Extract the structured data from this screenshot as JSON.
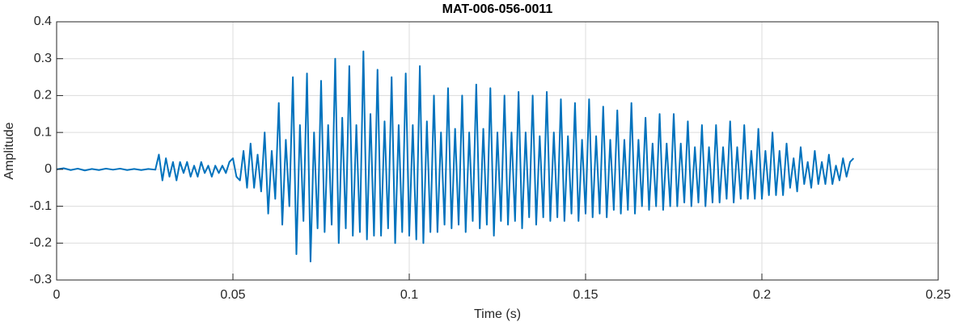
{
  "chart_data": {
    "type": "line",
    "title": "MAT-006-056-0011",
    "xlabel": "Time (s)",
    "ylabel": "Amplitude",
    "color": "#0072bd",
    "grid": true,
    "xlim": [
      0,
      0.25
    ],
    "xticks": [
      0,
      0.05,
      0.1,
      0.15,
      0.2,
      0.25
    ],
    "ylim": [
      -0.3,
      0.4
    ],
    "yticks": [
      -0.3,
      -0.2,
      -0.1,
      0,
      0.1,
      0.2,
      0.3,
      0.4
    ],
    "x": [
      0,
      0.002,
      0.004,
      0.006,
      0.008,
      0.01,
      0.012,
      0.014,
      0.016,
      0.018,
      0.02,
      0.022,
      0.024,
      0.026,
      0.028,
      0.029,
      0.03,
      0.031,
      0.032,
      0.033,
      0.034,
      0.035,
      0.036,
      0.037,
      0.038,
      0.039,
      0.04,
      0.041,
      0.042,
      0.043,
      0.044,
      0.045,
      0.046,
      0.047,
      0.048,
      0.049,
      0.05,
      0.051,
      0.052,
      0.053,
      0.054,
      0.055,
      0.056,
      0.057,
      0.058,
      0.059,
      0.06,
      0.061,
      0.062,
      0.063,
      0.064,
      0.065,
      0.066,
      0.067,
      0.068,
      0.069,
      0.07,
      0.071,
      0.072,
      0.073,
      0.074,
      0.075,
      0.076,
      0.077,
      0.078,
      0.079,
      0.08,
      0.081,
      0.082,
      0.083,
      0.084,
      0.085,
      0.086,
      0.087,
      0.088,
      0.089,
      0.09,
      0.091,
      0.092,
      0.093,
      0.094,
      0.095,
      0.096,
      0.097,
      0.098,
      0.099,
      0.1,
      0.101,
      0.102,
      0.103,
      0.104,
      0.105,
      0.106,
      0.107,
      0.108,
      0.109,
      0.11,
      0.111,
      0.112,
      0.113,
      0.114,
      0.115,
      0.116,
      0.117,
      0.118,
      0.119,
      0.12,
      0.121,
      0.122,
      0.123,
      0.124,
      0.125,
      0.126,
      0.127,
      0.128,
      0.129,
      0.13,
      0.131,
      0.132,
      0.133,
      0.134,
      0.135,
      0.136,
      0.137,
      0.138,
      0.139,
      0.14,
      0.141,
      0.142,
      0.143,
      0.144,
      0.145,
      0.146,
      0.147,
      0.148,
      0.149,
      0.15,
      0.151,
      0.152,
      0.153,
      0.154,
      0.155,
      0.156,
      0.157,
      0.158,
      0.159,
      0.16,
      0.161,
      0.162,
      0.163,
      0.164,
      0.165,
      0.166,
      0.167,
      0.168,
      0.169,
      0.17,
      0.171,
      0.172,
      0.173,
      0.174,
      0.175,
      0.176,
      0.177,
      0.178,
      0.179,
      0.18,
      0.181,
      0.182,
      0.183,
      0.184,
      0.185,
      0.186,
      0.187,
      0.188,
      0.189,
      0.19,
      0.191,
      0.192,
      0.193,
      0.194,
      0.195,
      0.196,
      0.197,
      0.198,
      0.199,
      0.2,
      0.201,
      0.202,
      0.203,
      0.204,
      0.205,
      0.206,
      0.207,
      0.208,
      0.209,
      0.21,
      0.211,
      0.212,
      0.213,
      0.214,
      0.215,
      0.216,
      0.217,
      0.218,
      0.219,
      0.22,
      0.221,
      0.222,
      0.223,
      0.224,
      0.225,
      0.226
    ],
    "values": [
      0,
      0.003,
      -0.002,
      0.002,
      -0.003,
      0.001,
      -0.002,
      0.002,
      -0.001,
      0.002,
      -0.002,
      0.001,
      -0.002,
      0.001,
      -0.001,
      0.04,
      -0.03,
      0.03,
      -0.02,
      0.02,
      -0.03,
      0.02,
      -0.01,
      0.02,
      -0.02,
      0.01,
      -0.02,
      0.02,
      -0.01,
      0.01,
      -0.02,
      0.01,
      -0.01,
      0.01,
      -0.01,
      0.02,
      0.03,
      -0.02,
      -0.03,
      0.05,
      -0.05,
      0.07,
      -0.05,
      0.04,
      -0.06,
      0.1,
      -0.12,
      0.05,
      -0.08,
      0.18,
      -0.15,
      0.08,
      -0.1,
      0.25,
      -0.23,
      0.12,
      -0.14,
      0.26,
      -0.25,
      0.1,
      -0.16,
      0.24,
      -0.17,
      0.12,
      -0.15,
      0.3,
      -0.2,
      0.14,
      -0.16,
      0.28,
      -0.18,
      0.12,
      -0.17,
      0.32,
      -0.19,
      0.15,
      -0.18,
      0.27,
      -0.18,
      0.13,
      -0.16,
      0.25,
      -0.2,
      0.12,
      -0.17,
      0.26,
      -0.18,
      0.12,
      -0.19,
      0.28,
      -0.2,
      0.13,
      -0.17,
      0.2,
      -0.17,
      0.1,
      -0.15,
      0.22,
      -0.16,
      0.11,
      -0.15,
      0.2,
      -0.17,
      0.1,
      -0.14,
      0.23,
      -0.16,
      0.11,
      -0.15,
      0.22,
      -0.18,
      0.1,
      -0.14,
      0.2,
      -0.15,
      0.1,
      -0.14,
      0.21,
      -0.16,
      0.1,
      -0.13,
      0.2,
      -0.15,
      0.09,
      -0.13,
      0.21,
      -0.14,
      0.1,
      -0.13,
      0.19,
      -0.14,
      0.09,
      -0.12,
      0.18,
      -0.14,
      0.08,
      -0.12,
      0.19,
      -0.13,
      0.09,
      -0.12,
      0.17,
      -0.13,
      0.08,
      -0.11,
      0.16,
      -0.12,
      0.08,
      -0.11,
      0.18,
      -0.12,
      0.08,
      -0.1,
      0.14,
      -0.11,
      0.07,
      -0.1,
      0.15,
      -0.11,
      0.07,
      -0.1,
      0.15,
      -0.1,
      0.07,
      -0.09,
      0.13,
      -0.1,
      0.06,
      -0.09,
      0.12,
      -0.1,
      0.06,
      -0.09,
      0.12,
      -0.09,
      0.06,
      -0.08,
      0.13,
      -0.09,
      0.06,
      -0.08,
      0.12,
      -0.08,
      0.05,
      -0.08,
      0.11,
      -0.08,
      0.05,
      -0.07,
      0.1,
      -0.07,
      0.05,
      -0.07,
      0.07,
      -0.05,
      0.03,
      -0.06,
      0.06,
      -0.04,
      0.02,
      -0.05,
      0.05,
      -0.04,
      0.02,
      -0.04,
      0.04,
      -0.04,
      0.01,
      -0.03,
      0.03,
      -0.02,
      0.02,
      0.03
    ]
  }
}
